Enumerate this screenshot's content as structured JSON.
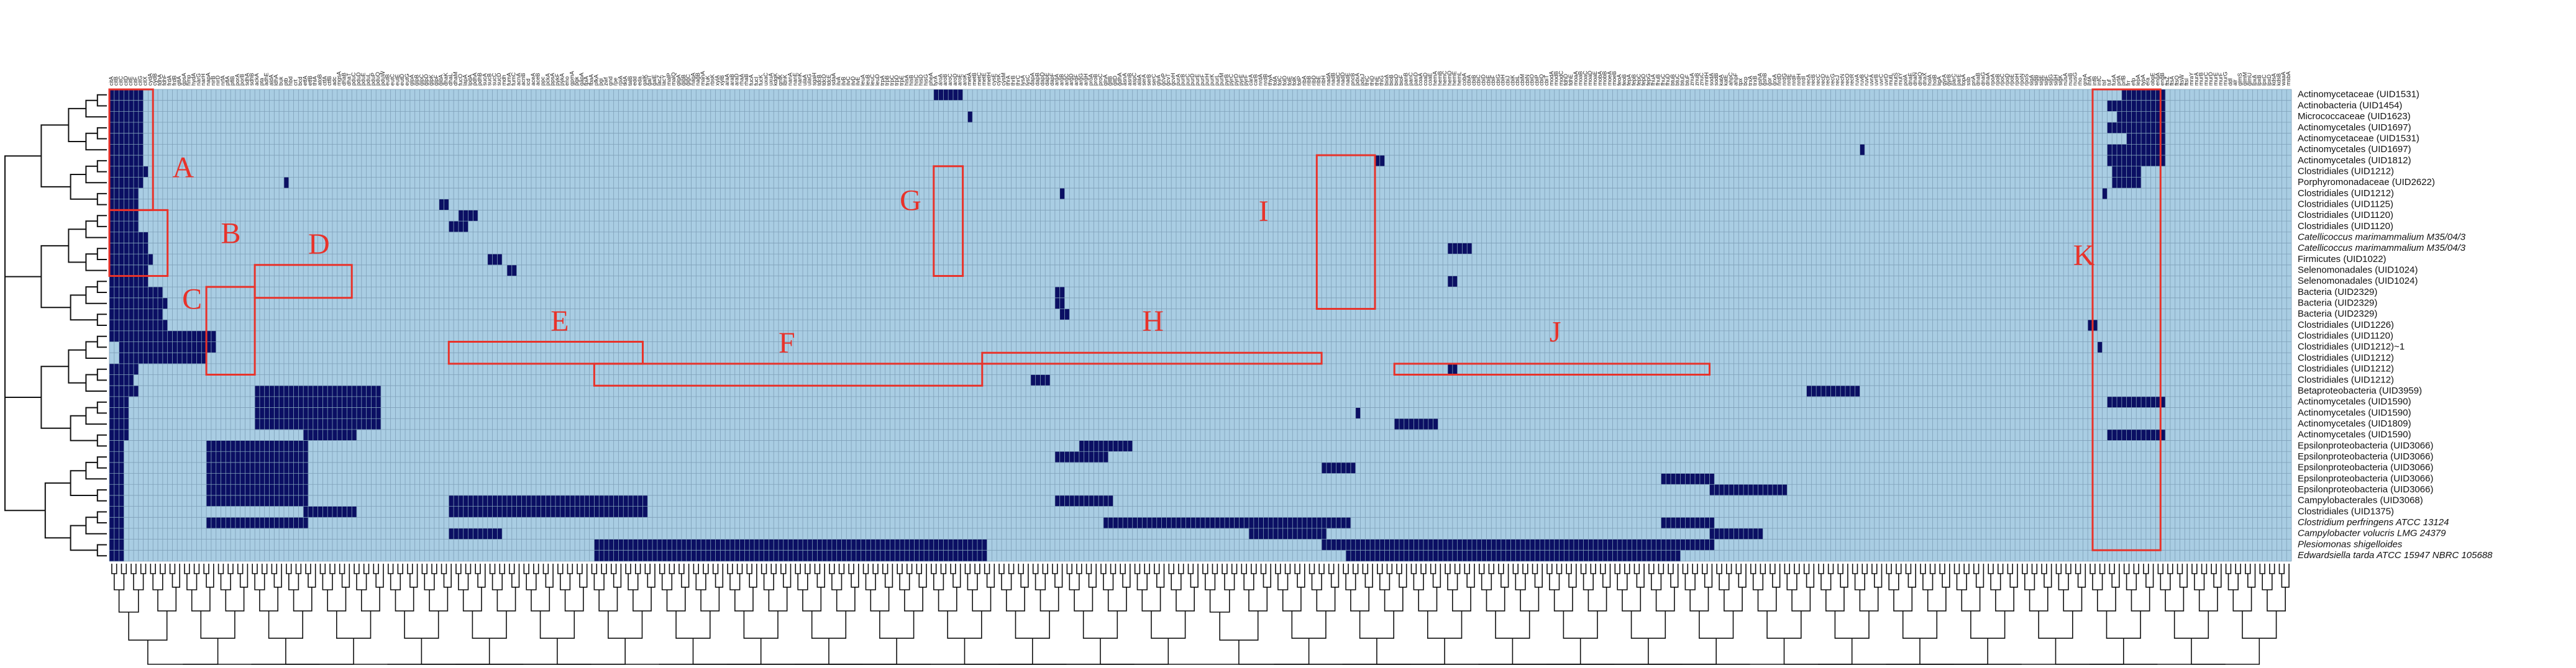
{
  "chart_data": {
    "type": "heatmap",
    "title": "",
    "xlabel": "",
    "ylabel": "",
    "colors": {
      "absent": "#a9cde3",
      "present": "#0b0f63",
      "grid": "#7e9fb8",
      "highlight": "#e8322a",
      "tree": "#111111"
    },
    "rows": [
      {
        "label": "Actinomycetaceae (UID1531)",
        "italic": false
      },
      {
        "label": "Actinobacteria (UID1454)",
        "italic": false
      },
      {
        "label": "Micrococcaceae (UID1623)",
        "italic": false
      },
      {
        "label": "Actinomycetales (UID1697)",
        "italic": false
      },
      {
        "label": "Actinomycetaceae (UID1531)",
        "italic": false
      },
      {
        "label": "Actinomycetales (UID1697)",
        "italic": false
      },
      {
        "label": "Actinomycetales (UID1812)",
        "italic": false
      },
      {
        "label": "Clostridiales (UID1212)",
        "italic": false
      },
      {
        "label": "Porphyromonadaceae (UID2622)",
        "italic": false
      },
      {
        "label": "Clostridiales (UID1212)",
        "italic": false
      },
      {
        "label": "Clostridiales (UID1125)",
        "italic": false
      },
      {
        "label": "Clostridiales (UID1120)",
        "italic": false
      },
      {
        "label": "Clostridiales (UID1120)",
        "italic": false
      },
      {
        "label": "Catellicoccus marimammalium M35/04/3",
        "italic": true
      },
      {
        "label": "Catellicoccus marimammalium M35/04/3",
        "italic": true
      },
      {
        "label": "Firmicutes (UID1022)",
        "italic": false
      },
      {
        "label": "Selenomonadales (UID1024)",
        "italic": false
      },
      {
        "label": "Selenomonadales (UID1024)",
        "italic": false
      },
      {
        "label": "Bacteria (UID2329)",
        "italic": false
      },
      {
        "label": "Bacteria (UID2329)",
        "italic": false
      },
      {
        "label": "Bacteria (UID2329)",
        "italic": false
      },
      {
        "label": "Clostridiales (UID1226)",
        "italic": false
      },
      {
        "label": "Clostridiales (UID1120)",
        "italic": false
      },
      {
        "label": "Clostridiales (UID1212)~1",
        "italic": false
      },
      {
        "label": "Clostridiales (UID1212)",
        "italic": false
      },
      {
        "label": "Clostridiales (UID1212)",
        "italic": false
      },
      {
        "label": "Clostridiales (UID1212)",
        "italic": false
      },
      {
        "label": "Betaproteobacteria (UID3959)",
        "italic": false
      },
      {
        "label": "Actinomycetales (UID1590)",
        "italic": false
      },
      {
        "label": "Actinomycetales (UID1590)",
        "italic": false
      },
      {
        "label": "Actinomycetales (UID1809)",
        "italic": false
      },
      {
        "label": "Actinomycetales (UID1590)",
        "italic": false
      },
      {
        "label": "Epsilonproteobacteria (UID3066)",
        "italic": false
      },
      {
        "label": "Epsilonproteobacteria (UID3066)",
        "italic": false
      },
      {
        "label": "Epsilonproteobacteria (UID3066)",
        "italic": false
      },
      {
        "label": "Epsilonproteobacteria (UID3066)",
        "italic": false
      },
      {
        "label": "Epsilonproteobacteria (UID3066)",
        "italic": false
      },
      {
        "label": "Campylobacterales (UID3068)",
        "italic": false
      },
      {
        "label": "Clostridiales (UID1375)",
        "italic": false
      },
      {
        "label": "Clostridium perfringens ATCC 13124",
        "italic": true
      },
      {
        "label": "Campylobacter volucris LMG 24379",
        "italic": true
      },
      {
        "label": "Plesiomonas shigelloides",
        "italic": true
      },
      {
        "label": "Edwardsiella tarda ATCC 15947 NBRC 105688",
        "italic": true
      }
    ],
    "columns": [
      "citA",
      "citB",
      "citC",
      "citD",
      "citE",
      "citF",
      "citG",
      "citX",
      "cydA",
      "cydB",
      "fdhA",
      "fdhF",
      "frdA",
      "frdB",
      "gltA",
      "gpsA",
      "hmp",
      "hydA",
      "narG",
      "narH",
      "napA",
      "nirB",
      "nirD",
      "nrfA",
      "pflA",
      "pflB",
      "porA",
      "porB",
      "sdhA",
      "sdhB",
      "ackA",
      "pta",
      "adhE",
      "aldA",
      "ldhA",
      "buk",
      "ptb",
      "hbd",
      "crt",
      "bcd",
      "etfA",
      "etfB",
      "thlA",
      "atoB",
      "ctfA",
      "ctfB",
      "adc",
      "mgsA",
      "dhaB",
      "dhaT",
      "pduC",
      "pduD",
      "pduE",
      "pduL",
      "pduP",
      "pduQ",
      "pduW",
      "eutB",
      "eutC",
      "eutE",
      "eutD",
      "eutG",
      "glpA",
      "glpB",
      "glpC",
      "glpD",
      "glpK",
      "glpF",
      "gldA",
      "dhaK",
      "dhaL",
      "dhaM",
      "fucO",
      "lapA",
      "lpdA",
      "pdhA",
      "pdhB",
      "sucA",
      "sucB",
      "sucC",
      "sucD",
      "mdh",
      "fumA",
      "fumC",
      "acnA",
      "acnB",
      "icd",
      "aceA",
      "aceB",
      "ppc",
      "pckA",
      "ppsA",
      "pykF",
      "pykA",
      "eno",
      "gpmA",
      "pgk",
      "gapA",
      "tpiA",
      "fbaA",
      "pfkA",
      "pgi",
      "zwf",
      "gnd",
      "rpe",
      "rpiA",
      "tktA",
      "talB",
      "edd",
      "eda",
      "galK",
      "galT",
      "galE",
      "lacZ",
      "lacY",
      "malP",
      "malQ",
      "glgA",
      "glgB",
      "glgC",
      "nagA",
      "nagB",
      "manA",
      "fruK",
      "rbsK",
      "xylA",
      "xylB",
      "araA",
      "araB",
      "araD",
      "rhaA",
      "rhaB",
      "fucA",
      "fucI",
      "fucK",
      "uxaC",
      "uxuA",
      "kdgK",
      "gntK",
      "idnK",
      "nanA",
      "nanE",
      "nanK",
      "ulaA",
      "ulaG",
      "sgaH",
      "tdcB",
      "tdcD",
      "tdcE",
      "sdaA",
      "ilvA",
      "ilvB",
      "ilvC",
      "ilvD",
      "ilvE",
      "leuA",
      "leuB",
      "leuC",
      "leuD",
      "trpA",
      "trpB",
      "trpC",
      "trpD",
      "trpE",
      "hisA",
      "hisB",
      "hisC",
      "hisD",
      "hisG",
      "pheA",
      "tyrA",
      "aroA",
      "aroB",
      "aroC",
      "aroD",
      "aroE",
      "aroK",
      "metA",
      "metB",
      "metC",
      "metE",
      "metH",
      "cysE",
      "cysK",
      "cysM",
      "thrA",
      "thrB",
      "thrC",
      "lysA",
      "lysC",
      "dapA",
      "dapB",
      "dapD",
      "dapE",
      "dapF",
      "argA",
      "argB",
      "argC",
      "argD",
      "argF",
      "argG",
      "argH",
      "proA",
      "proB",
      "proC",
      "glnA",
      "gltB",
      "gltD",
      "gdhA",
      "asnA",
      "asnB",
      "aspC",
      "alaA",
      "serA",
      "serB",
      "serC",
      "glyA",
      "gcvP",
      "gcvT",
      "gcvH",
      "purA",
      "purB",
      "purC",
      "purD",
      "purE",
      "purF",
      "purH",
      "purK",
      "purL",
      "purM",
      "pyrB",
      "pyrC",
      "pyrD",
      "pyrE",
      "pyrF",
      "carA",
      "carB",
      "nrdA",
      "nrdB",
      "thyA",
      "folA",
      "folC",
      "folD",
      "folE",
      "folK",
      "folP",
      "ribA",
      "ribB",
      "ribD",
      "ribE",
      "ribH",
      "nadA",
      "nadB",
      "nadC",
      "nadD",
      "nadE",
      "pncB",
      "pdxA",
      "pdxJ",
      "thiC",
      "thiD",
      "thiE",
      "thiG",
      "bioA",
      "bioB",
      "bioD",
      "bioF",
      "panB",
      "panC",
      "panD",
      "coaA",
      "coaD",
      "coaE",
      "hemA",
      "hemB",
      "hemC",
      "hemD",
      "hemE",
      "hemL",
      "cobA",
      "cbiA",
      "cbiB",
      "cbiC",
      "cbiD",
      "cbiE",
      "cbiF",
      "cbiG",
      "cbiH",
      "cbiJ",
      "cbiK",
      "cbiL",
      "cbiM",
      "cbiN",
      "cbiO",
      "cbiP",
      "cbiQ",
      "cbiT",
      "modA",
      "modB",
      "modC",
      "fdhD",
      "fdhE",
      "moaA",
      "moaB",
      "moaC",
      "moaD",
      "moaE",
      "mobA",
      "mobB",
      "moeA",
      "moeB",
      "feoA",
      "feoB",
      "fepA",
      "fepB",
      "fepC",
      "fepD",
      "fepG",
      "fhuA",
      "fhuB",
      "fhuC",
      "fhuD",
      "btuB",
      "btuC",
      "btuD",
      "btuF",
      "znuA",
      "znuB",
      "znuC",
      "mntH",
      "sodA",
      "sodB",
      "katA",
      "katE",
      "ahpC",
      "ahpF",
      "tpx",
      "bcp",
      "trxA",
      "trxB",
      "gshA",
      "gshB",
      "gor",
      "grxA",
      "nrdD",
      "nrdG",
      "nrdE",
      "nrdF",
      "nrdH",
      "nrdI",
      "recA",
      "recB",
      "recC",
      "recD",
      "recF",
      "recG",
      "recJ",
      "recN",
      "recO",
      "recR",
      "ruvA",
      "ruvB",
      "ruvC",
      "uvrA",
      "uvrB",
      "uvrC",
      "uvrD",
      "mutL",
      "mutS",
      "mutY",
      "polA",
      "dnaE",
      "dnaN",
      "dnaQ",
      "dnaX",
      "holA",
      "holB",
      "ligA",
      "gyrA",
      "gyrB",
      "parC",
      "parE",
      "topA",
      "ssb",
      "priA",
      "dnaB",
      "dnaG",
      "dnaA",
      "rpoA",
      "rpoB",
      "rpoC",
      "rpoD",
      "rpoE",
      "rpoH",
      "rpoN",
      "rpoS",
      "sigA",
      "sigB",
      "sigE",
      "sigF",
      "sigG",
      "sigH",
      "sigK",
      "nusA",
      "nusB",
      "nusG",
      "rho",
      "greA",
      "infA",
      "infB",
      "infC",
      "tsf",
      "tuf",
      "fusA",
      "prfA",
      "prfB",
      "frr",
      "efp",
      "lepA",
      "typA",
      "era",
      "obgE",
      "engA",
      "engB",
      "ftsZ",
      "ftsA",
      "ftsQ",
      "ftsW",
      "ftsI",
      "mraY",
      "murA",
      "murB",
      "murC",
      "murD",
      "murE",
      "murF",
      "murG",
      "ddl",
      "alr",
      "glmS",
      "glmM",
      "glmU",
      "lpxA",
      "lpxB",
      "lpxC",
      "lpxD",
      "kdsA",
      "kdsB",
      "waaA",
      "msbA"
    ],
    "present": [
      [
        [
          0,
          6
        ],
        [
          170,
          175
        ],
        [
          415,
          423
        ]
      ],
      [
        [
          0,
          6
        ],
        [
          412,
          423
        ]
      ],
      [
        [
          0,
          6
        ],
        [
          414,
          423
        ],
        [
          177,
          177
        ]
      ],
      [
        [
          0,
          6
        ],
        [
          412,
          423
        ]
      ],
      [
        [
          0,
          6
        ],
        [
          416,
          423
        ]
      ],
      [
        [
          0,
          6
        ],
        [
          412,
          423
        ],
        [
          361,
          361
        ]
      ],
      [
        [
          0,
          6
        ],
        [
          412,
          423
        ],
        [
          261,
          262
        ]
      ],
      [
        [
          0,
          7
        ],
        [
          413,
          418
        ]
      ],
      [
        [
          0,
          6
        ],
        [
          413,
          418
        ],
        [
          36,
          36
        ]
      ],
      [
        [
          0,
          5
        ],
        [
          411,
          411
        ],
        [
          196,
          196
        ]
      ],
      [
        [
          0,
          5
        ],
        [
          68,
          69
        ]
      ],
      [
        [
          0,
          5
        ],
        [
          72,
          75
        ]
      ],
      [
        [
          0,
          5
        ],
        [
          70,
          73
        ]
      ],
      [
        [
          0,
          7
        ]
      ],
      [
        [
          0,
          7
        ],
        [
          276,
          280
        ]
      ],
      [
        [
          0,
          8
        ],
        [
          78,
          80
        ]
      ],
      [
        [
          0,
          7
        ],
        [
          82,
          83
        ]
      ],
      [
        [
          0,
          7
        ],
        [
          276,
          277
        ]
      ],
      [
        [
          0,
          10
        ],
        [
          195,
          196
        ]
      ],
      [
        [
          0,
          11
        ],
        [
          195,
          196
        ]
      ],
      [
        [
          0,
          10
        ],
        [
          196,
          197
        ]
      ],
      [
        [
          0,
          11
        ],
        [
          408,
          409
        ]
      ],
      [
        [
          0,
          21
        ]
      ],
      [
        [
          2,
          21
        ],
        [
          410,
          410
        ]
      ],
      [
        [
          2,
          19
        ]
      ],
      [
        [
          0,
          5
        ],
        [
          276,
          277
        ]
      ],
      [
        [
          0,
          4
        ],
        [
          190,
          193
        ]
      ],
      [
        [
          0,
          5
        ],
        [
          30,
          55
        ],
        [
          350,
          360
        ]
      ],
      [
        [
          0,
          3
        ],
        [
          30,
          55
        ],
        [
          412,
          423
        ]
      ],
      [
        [
          0,
          3
        ],
        [
          30,
          55
        ],
        [
          257,
          257
        ]
      ],
      [
        [
          0,
          3
        ],
        [
          30,
          55
        ],
        [
          265,
          273
        ]
      ],
      [
        [
          0,
          3
        ],
        [
          40,
          50
        ],
        [
          412,
          423
        ]
      ],
      [
        [
          0,
          2
        ],
        [
          20,
          40
        ],
        [
          200,
          210
        ]
      ],
      [
        [
          0,
          2
        ],
        [
          20,
          40
        ],
        [
          195,
          205
        ]
      ],
      [
        [
          0,
          2
        ],
        [
          20,
          40
        ],
        [
          250,
          256
        ]
      ],
      [
        [
          0,
          2
        ],
        [
          20,
          40
        ],
        [
          320,
          330
        ]
      ],
      [
        [
          0,
          2
        ],
        [
          20,
          40
        ],
        [
          330,
          345
        ]
      ],
      [
        [
          0,
          2
        ],
        [
          20,
          40
        ],
        [
          70,
          110
        ],
        [
          195,
          206
        ]
      ],
      [
        [
          0,
          2
        ],
        [
          40,
          50
        ],
        [
          70,
          110
        ]
      ],
      [
        [
          0,
          2
        ],
        [
          20,
          40
        ],
        [
          205,
          255
        ],
        [
          320,
          330
        ]
      ],
      [
        [
          0,
          2
        ],
        [
          70,
          80
        ],
        [
          330,
          340
        ],
        [
          235,
          250
        ]
      ],
      [
        [
          0,
          2
        ],
        [
          100,
          180
        ],
        [
          250,
          330
        ]
      ],
      [
        [
          0,
          2
        ],
        [
          100,
          180
        ],
        [
          255,
          323
        ]
      ]
    ],
    "regions": [
      {
        "label": "A"
      },
      {
        "label": "B"
      },
      {
        "label": "C"
      },
      {
        "label": "D"
      },
      {
        "label": "E"
      },
      {
        "label": "F"
      },
      {
        "label": "G"
      },
      {
        "label": "H"
      },
      {
        "label": "I"
      },
      {
        "label": "J"
      },
      {
        "label": "K"
      }
    ]
  }
}
